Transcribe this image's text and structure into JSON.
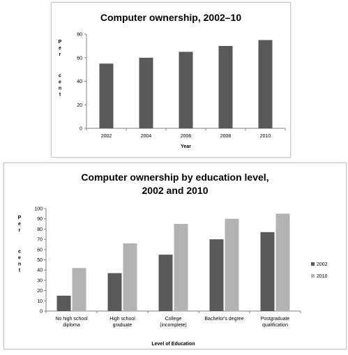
{
  "chart_data": [
    {
      "type": "bar",
      "title": "Computer ownership, 2002–10",
      "xlabel": "Year",
      "ylabel": "Per cent",
      "ylim": [
        0,
        80
      ],
      "yticks": [
        0,
        20,
        40,
        60,
        80
      ],
      "categories": [
        "2002",
        "2004",
        "2006",
        "2008",
        "2010"
      ],
      "values": [
        55,
        60,
        65,
        70,
        75
      ],
      "grid": false,
      "colors": {
        "bar": "#595959"
      }
    },
    {
      "type": "bar",
      "title_line1": "Computer ownership by education level,",
      "title_line2": "2002 and 2010",
      "xlabel": "Level of Education",
      "ylabel": "Per cent",
      "ylim": [
        0,
        100
      ],
      "yticks": [
        0,
        10,
        20,
        30,
        40,
        50,
        60,
        70,
        80,
        90,
        100
      ],
      "categories": [
        [
          "No high school",
          "diploma"
        ],
        [
          "High school",
          "graduate"
        ],
        [
          "College",
          "(incomplete)"
        ],
        [
          "Bachelor's degree"
        ],
        [
          "Postgraduate",
          "qualification"
        ]
      ],
      "series": [
        {
          "name": "2002",
          "values": [
            15,
            37,
            55,
            70,
            77
          ],
          "color": "#595959"
        },
        {
          "name": "2010",
          "values": [
            42,
            66,
            85,
            90,
            95
          ],
          "color": "#b3b3b3"
        }
      ],
      "legend_position": "right",
      "grid": false
    }
  ]
}
